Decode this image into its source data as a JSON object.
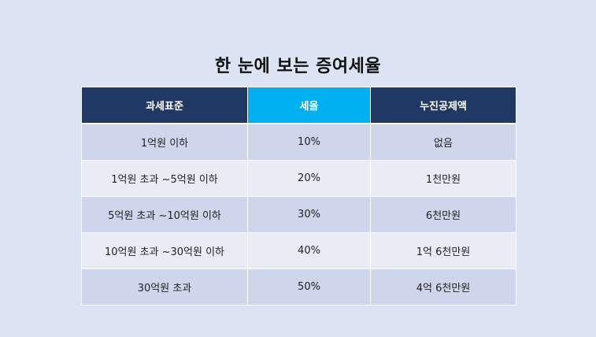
{
  "title": "한 눈에 보는 증여세율",
  "table": {
    "headers": [
      "과세표준",
      "세율",
      "누진공제액"
    ],
    "rows": [
      [
        "1억원 이하",
        "10%",
        "없음"
      ],
      [
        "1억원 초과 ~5억원 이하",
        "20%",
        "1천만원"
      ],
      [
        "5억원 초과 ~10억원 이하",
        "30%",
        "6천만원"
      ],
      [
        "10억원 초과 ~30억원 이하",
        "40%",
        "1억 6천만원"
      ],
      [
        "30억원 초과",
        "50%",
        "4억 6천만원"
      ]
    ]
  },
  "colors": {
    "background": "#dce4f4",
    "header": "#1f3864",
    "header_accent": "#00b0f0",
    "row_odd": "#cfd5ea",
    "row_even": "#e9ebf5"
  }
}
